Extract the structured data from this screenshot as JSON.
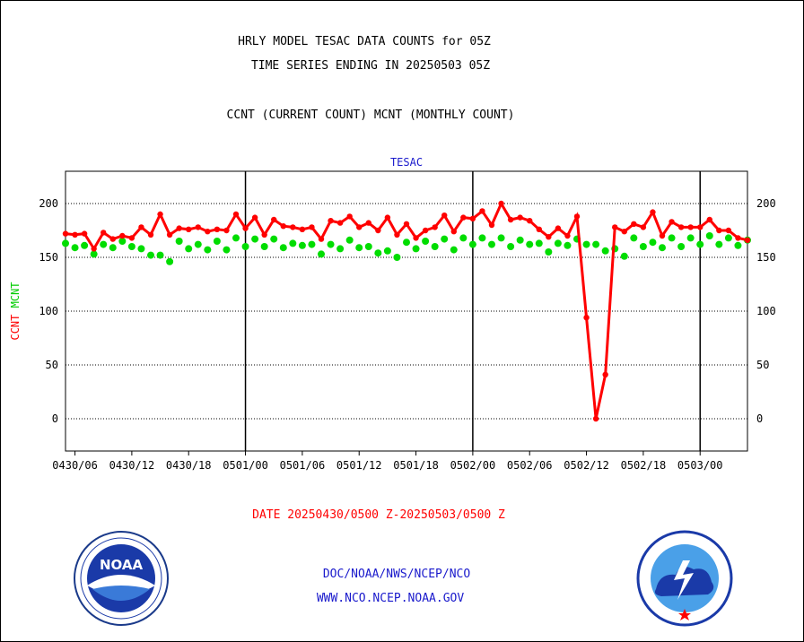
{
  "header": {
    "title_line1": "HRLY MODEL TESAC DATA COUNTS for 05Z",
    "title_line2": "TIME SERIES ENDING IN 20250503 05Z",
    "subtitle": "CCNT (CURRENT COUNT) MCNT (MONTHLY COUNT)"
  },
  "footer": {
    "date_range": "DATE 20250430/0500 Z-20250503/0500 Z",
    "line1": "DOC/NOAA/NWS/NCEP/NCO",
    "line2": "WWW.NCO.NCEP.NOAA.GOV"
  },
  "logos": {
    "left": {
      "icon": "noaa-logo",
      "text": "NOAA"
    },
    "right": {
      "icon": "nws-logo"
    }
  },
  "chart_data": {
    "type": "line",
    "title": "TESAC",
    "ylabel_parts": [
      "CCNT",
      "MCNT"
    ],
    "ylabel_colors": [
      "#ff0000",
      "#00cc00"
    ],
    "ylim": [
      -30,
      230
    ],
    "yticks": [
      0,
      50,
      100,
      150,
      200
    ],
    "x_start_hour": 5,
    "x_end_hour": 77,
    "xlim_hours": [
      5,
      77
    ],
    "xticks": [
      {
        "hour": 6,
        "label": "0430/06"
      },
      {
        "hour": 12,
        "label": "0430/12"
      },
      {
        "hour": 18,
        "label": "0430/18"
      },
      {
        "hour": 24,
        "label": "0501/00"
      },
      {
        "hour": 30,
        "label": "0501/06"
      },
      {
        "hour": 36,
        "label": "0501/12"
      },
      {
        "hour": 42,
        "label": "0501/18"
      },
      {
        "hour": 48,
        "label": "0502/00"
      },
      {
        "hour": 54,
        "label": "0502/06"
      },
      {
        "hour": 60,
        "label": "0502/12"
      },
      {
        "hour": 66,
        "label": "0502/18"
      },
      {
        "hour": 72,
        "label": "0503/00"
      }
    ],
    "vertical_lines_hours": [
      24,
      48,
      72
    ],
    "grid": true,
    "series": [
      {
        "name": "CCNT",
        "color": "#ff0000",
        "values": [
          172,
          171,
          172,
          158,
          173,
          167,
          170,
          168,
          178,
          171,
          190,
          171,
          177,
          176,
          178,
          174,
          176,
          175,
          190,
          177,
          187,
          171,
          185,
          179,
          178,
          176,
          178,
          167,
          184,
          182,
          188,
          178,
          182,
          175,
          187,
          171,
          181,
          168,
          175,
          178,
          189,
          174,
          187,
          186,
          193,
          180,
          200,
          185,
          187,
          184,
          176,
          169,
          177,
          170,
          188,
          94,
          0,
          41,
          178,
          174,
          181,
          178,
          192,
          170,
          183,
          178,
          178,
          178,
          185,
          175,
          175,
          168,
          166
        ]
      },
      {
        "name": "MCNT",
        "color": "#00dd00",
        "values": [
          163,
          159,
          161,
          153,
          162,
          159,
          165,
          160,
          158,
          152,
          152,
          146,
          165,
          158,
          162,
          157,
          165,
          157,
          168,
          160,
          167,
          160,
          167,
          159,
          163,
          161,
          162,
          153,
          162,
          158,
          166,
          159,
          160,
          154,
          156,
          150,
          164,
          158,
          165,
          160,
          167,
          157,
          168,
          162,
          168,
          162,
          168,
          160,
          166,
          162,
          163,
          155,
          163,
          161,
          167,
          162,
          162,
          156,
          158,
          151,
          168,
          160,
          164,
          159,
          168,
          160,
          168,
          162,
          170,
          162,
          168,
          161,
          166
        ]
      }
    ]
  }
}
